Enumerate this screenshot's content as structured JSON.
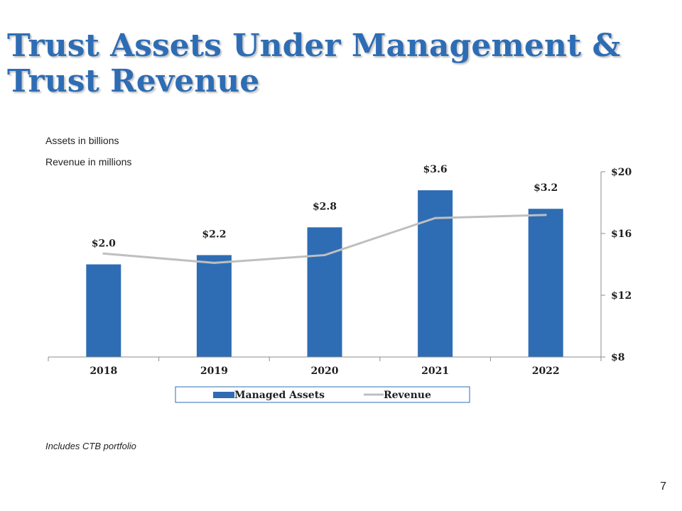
{
  "slide": {
    "title_line1": "Trust Assets Under Management &",
    "title_line2": "Trust Revenue",
    "units_assets": "Assets in billions",
    "units_revenue": "Revenue in millions",
    "footnote": "Includes CTB portfolio",
    "page_number": "7"
  },
  "colors": {
    "title": "#2e6db4",
    "bars": "#2e6db4",
    "line": "#bfbfbf"
  },
  "chart_data": {
    "type": "bar",
    "categories": [
      "2018",
      "2019",
      "2020",
      "2021",
      "2022"
    ],
    "series": [
      {
        "name": "Managed Assets",
        "type": "bar",
        "axis": "left",
        "values": [
          2.0,
          2.2,
          2.8,
          3.6,
          3.2
        ],
        "labels": [
          "$2.0",
          "$2.2",
          "$2.8",
          "$3.6",
          "$3.2"
        ]
      },
      {
        "name": "Revenue",
        "type": "line",
        "axis": "right",
        "values": [
          14.7,
          14.1,
          14.6,
          17.0,
          17.2
        ]
      }
    ],
    "left_axis": {
      "range": [
        0,
        4.0
      ],
      "visible": false
    },
    "right_axis": {
      "range": [
        8,
        20
      ],
      "ticks": [
        8,
        12,
        16,
        20
      ],
      "tick_labels": [
        "$8",
        "$12",
        "$16",
        "$20"
      ]
    },
    "legend": {
      "position": "bottom",
      "entries": [
        "Managed Assets",
        "Revenue"
      ]
    },
    "grid": false
  }
}
